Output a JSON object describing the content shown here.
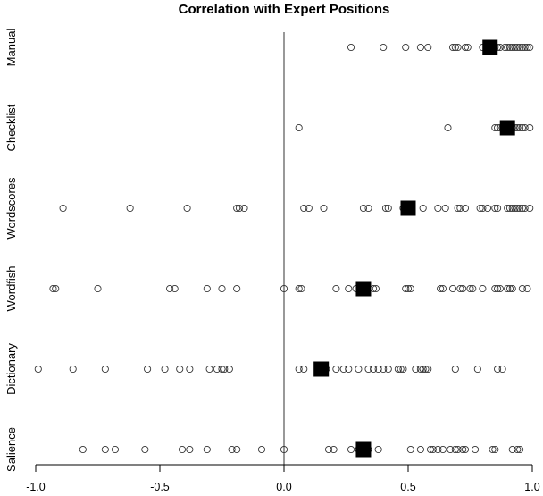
{
  "chart_data": {
    "type": "scatter",
    "title": "Correlation with Expert Positions",
    "xlabel": "",
    "ylabel": "",
    "xlim": [
      -1.0,
      1.0
    ],
    "xticks": [
      -1.0,
      -0.5,
      0.0,
      0.5,
      1.0
    ],
    "xtick_labels": [
      "-1.0",
      "-0.5",
      "0.0",
      "0.5",
      "1.0"
    ],
    "reference_line_x": 0.0,
    "categories": [
      "Manual",
      "Checklist",
      "Wordscores",
      "Wordfish",
      "Dictionary",
      "Salience"
    ],
    "series": [
      {
        "category": "Manual",
        "points": [
          0.27,
          0.4,
          0.49,
          0.55,
          0.58,
          0.68,
          0.69,
          0.7,
          0.73,
          0.74,
          0.8,
          0.83,
          0.85,
          0.86,
          0.87,
          0.89,
          0.9,
          0.91,
          0.92,
          0.93,
          0.94,
          0.95,
          0.96,
          0.97,
          0.98,
          0.99
        ],
        "summary": 0.83
      },
      {
        "category": "Checklist",
        "points": [
          0.06,
          0.66,
          0.85,
          0.86,
          0.87,
          0.88,
          0.89,
          0.9,
          0.91,
          0.92,
          0.93,
          0.94,
          0.95,
          0.96,
          0.97,
          0.99
        ],
        "summary": 0.9
      },
      {
        "category": "Wordscores",
        "points": [
          -0.89,
          -0.62,
          -0.39,
          -0.19,
          -0.18,
          -0.16,
          0.08,
          0.1,
          0.16,
          0.32,
          0.34,
          0.41,
          0.42,
          0.48,
          0.51,
          0.56,
          0.62,
          0.65,
          0.7,
          0.71,
          0.73,
          0.79,
          0.8,
          0.82,
          0.85,
          0.86,
          0.9,
          0.91,
          0.92,
          0.93,
          0.94,
          0.95,
          0.96,
          0.97,
          0.99
        ],
        "summary": 0.5
      },
      {
        "category": "Wordfish",
        "points": [
          -0.93,
          -0.92,
          -0.75,
          -0.46,
          -0.44,
          -0.31,
          -0.25,
          -0.19,
          0.0,
          0.06,
          0.07,
          0.21,
          0.26,
          0.29,
          0.32,
          0.36,
          0.37,
          0.49,
          0.5,
          0.51,
          0.63,
          0.64,
          0.68,
          0.71,
          0.72,
          0.75,
          0.76,
          0.8,
          0.85,
          0.86,
          0.87,
          0.9,
          0.91,
          0.92,
          0.96,
          0.98
        ],
        "summary": 0.32
      },
      {
        "category": "Dictionary",
        "points": [
          -0.99,
          -0.85,
          -0.72,
          -0.55,
          -0.48,
          -0.42,
          -0.38,
          -0.3,
          -0.27,
          -0.25,
          -0.24,
          -0.22,
          0.06,
          0.08,
          0.15,
          0.17,
          0.21,
          0.24,
          0.26,
          0.3,
          0.34,
          0.36,
          0.38,
          0.4,
          0.42,
          0.46,
          0.47,
          0.48,
          0.53,
          0.55,
          0.56,
          0.57,
          0.58,
          0.69,
          0.78,
          0.86,
          0.88
        ],
        "summary": 0.15
      },
      {
        "category": "Salience",
        "points": [
          -0.81,
          -0.72,
          -0.68,
          -0.56,
          -0.41,
          -0.38,
          -0.31,
          -0.21,
          -0.19,
          -0.09,
          0.0,
          0.18,
          0.2,
          0.27,
          0.3,
          0.33,
          0.34,
          0.38,
          0.51,
          0.55,
          0.59,
          0.6,
          0.62,
          0.64,
          0.67,
          0.69,
          0.7,
          0.72,
          0.73,
          0.77,
          0.84,
          0.85,
          0.92,
          0.94,
          0.95
        ],
        "summary": 0.32
      }
    ]
  }
}
